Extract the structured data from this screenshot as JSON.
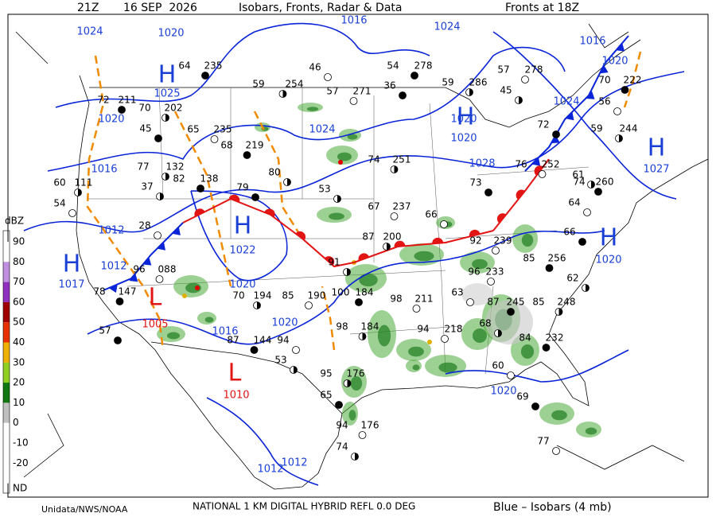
{
  "header": {
    "time": "21Z",
    "date": "16 SEP  2026",
    "title": "Isobars, Fronts, Radar & Data",
    "fronts": "Fronts at 18Z"
  },
  "footer": {
    "credit": "Unidata/NWS/NOAA",
    "product": "NATIONAL 1 KM DIGITAL HYBRID REFL 0.0 DEG",
    "legend": "Blue – Isobars (4 mb)"
  },
  "color_scale": {
    "unit": "dBZ",
    "levels": [
      90,
      80,
      70,
      60,
      50,
      40,
      30,
      20,
      10,
      0,
      -10,
      -20
    ],
    "nodata": "ND"
  },
  "pressure_centers": [
    {
      "symbol": "H",
      "value": "1025"
    },
    {
      "symbol": "H",
      "value": "1020"
    },
    {
      "symbol": "H",
      "value": "1027"
    },
    {
      "symbol": "H",
      "value": "1022"
    },
    {
      "symbol": "H",
      "value": "1020"
    },
    {
      "symbol": "H",
      "value": "1017"
    },
    {
      "symbol": "L",
      "value": "1005"
    },
    {
      "symbol": "L",
      "value": "1010"
    }
  ],
  "isobar_labels": [
    "1024",
    "1020",
    "1016",
    "1024",
    "1016",
    "1020",
    "1024",
    "1016",
    "1020",
    "1024",
    "1020",
    "1012",
    "1012",
    "1020",
    "1016",
    "1020",
    "1020",
    "1012",
    "1012",
    "1028"
  ],
  "stations": [
    {
      "temp": "64",
      "pressure": "235"
    },
    {
      "temp": "59",
      "pressure": "254"
    },
    {
      "temp": "57",
      "pressure": "271"
    },
    {
      "temp": "54",
      "pressure": "278"
    },
    {
      "temp": "59",
      "pressure": "286"
    },
    {
      "temp": "57",
      "pressure": "278"
    },
    {
      "temp": "72",
      "pressure": "211"
    },
    {
      "temp": "70",
      "pressure": "202"
    },
    {
      "temp": "65",
      "pressure": "235"
    },
    {
      "temp": "68",
      "pressure": "219"
    },
    {
      "temp": "74",
      "pressure": "251"
    },
    {
      "temp": "67",
      "pressure": "237"
    },
    {
      "temp": "70",
      "pressure": "222"
    },
    {
      "temp": "59",
      "pressure": "244"
    },
    {
      "temp": "92",
      "pressure": "239"
    },
    {
      "temp": "85",
      "pressure": "256"
    },
    {
      "temp": "87",
      "pressure": "200"
    },
    {
      "temp": "96",
      "pressure": "233"
    },
    {
      "temp": "87",
      "pressure": "245"
    },
    {
      "temp": "85",
      "pressure": "248"
    },
    {
      "temp": "98",
      "pressure": "211"
    },
    {
      "temp": "100",
      "pressure": "184"
    },
    {
      "temp": "98",
      "pressure": "184"
    },
    {
      "temp": "94",
      "pressure": "218"
    },
    {
      "temp": "84",
      "pressure": "232"
    },
    {
      "temp": "70",
      "pressure": "194"
    },
    {
      "temp": "85",
      "pressure": "190"
    },
    {
      "temp": "87",
      "pressure": "144"
    },
    {
      "temp": "95",
      "pressure": "176"
    },
    {
      "temp": "94",
      "pressure": "176"
    },
    {
      "temp": "78",
      "pressure": "147"
    },
    {
      "temp": "60",
      "pressure": "111"
    },
    {
      "temp": "96",
      "pressure": "088"
    },
    {
      "temp": "82",
      "pressure": "138"
    },
    {
      "temp": "77",
      "pressure": "132"
    },
    {
      "temp": "76",
      "pressure": "252"
    },
    {
      "temp": "74",
      "pressure": "260"
    },
    {
      "temp": "53"
    },
    {
      "temp": "66"
    },
    {
      "temp": "73"
    },
    {
      "temp": "91"
    },
    {
      "temp": "63"
    },
    {
      "temp": "65"
    },
    {
      "temp": "74"
    },
    {
      "temp": "77"
    },
    {
      "temp": "45"
    },
    {
      "temp": "37"
    },
    {
      "temp": "28"
    },
    {
      "temp": "79"
    },
    {
      "temp": "80"
    },
    {
      "temp": "46"
    },
    {
      "temp": "36"
    },
    {
      "temp": "45"
    },
    {
      "temp": "56"
    },
    {
      "temp": "72"
    },
    {
      "temp": "61"
    },
    {
      "temp": "64"
    },
    {
      "temp": "66"
    },
    {
      "temp": "62"
    },
    {
      "temp": "60"
    },
    {
      "temp": "69"
    },
    {
      "temp": "53"
    },
    {
      "temp": "54"
    },
    {
      "temp": "57"
    },
    {
      "temp": "68"
    },
    {
      "temp": "94"
    }
  ]
}
